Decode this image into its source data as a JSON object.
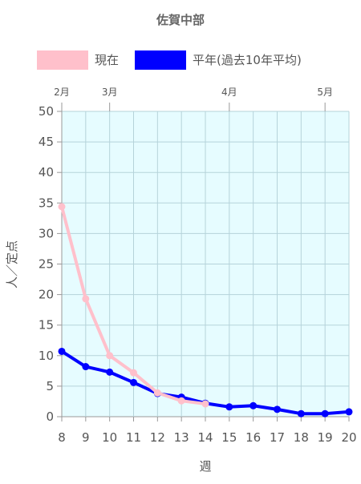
{
  "chart_data": {
    "type": "line",
    "title": "佐賀中部",
    "xlabel": "週",
    "ylabel": "人／定点",
    "x": [
      8,
      9,
      10,
      11,
      12,
      13,
      14,
      15,
      16,
      17,
      18,
      19,
      20
    ],
    "xlim": [
      8,
      20
    ],
    "ylim": [
      0,
      50
    ],
    "yticks": [
      0,
      5,
      10,
      15,
      20,
      25,
      30,
      35,
      40,
      45,
      50
    ],
    "grid": true,
    "legend_position": "top",
    "plot_background": "#e6fcff",
    "month_labels": [
      {
        "label": "2月",
        "x": 8
      },
      {
        "label": "3月",
        "x": 10
      },
      {
        "label": "4月",
        "x": 15
      },
      {
        "label": "5月",
        "x": 19
      }
    ],
    "series": [
      {
        "name": "現在",
        "color": "#ffc0cb",
        "values": [
          34.4,
          19.3,
          10.0,
          7.2,
          3.9,
          2.6,
          2.1,
          null,
          null,
          null,
          null,
          null,
          null
        ]
      },
      {
        "name": "平年(過去10年平均)",
        "color": "#0000ff",
        "values": [
          10.7,
          8.2,
          7.3,
          5.6,
          3.8,
          3.2,
          2.2,
          1.6,
          1.8,
          1.2,
          0.5,
          0.5,
          0.8
        ]
      }
    ]
  }
}
